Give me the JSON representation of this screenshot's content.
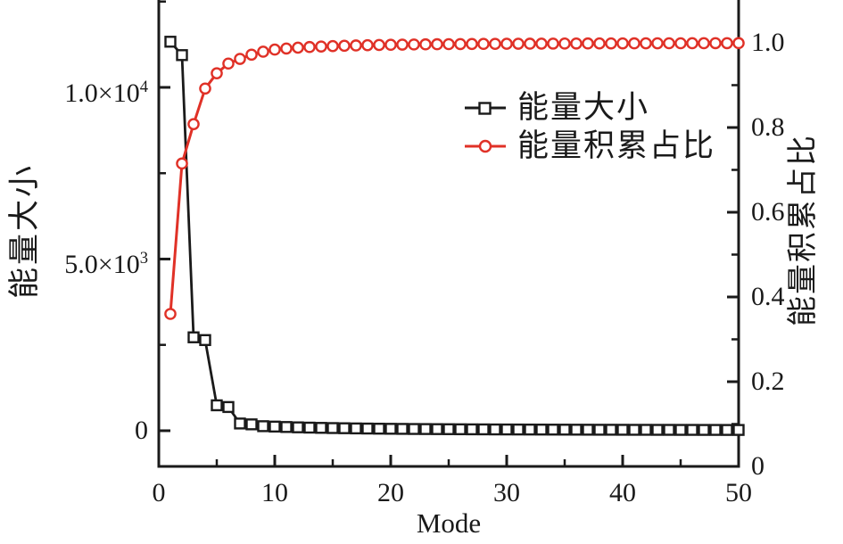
{
  "chart_data": {
    "type": "line",
    "title": "",
    "xlabel": "Mode",
    "xlim": [
      0,
      50
    ],
    "grid": false,
    "x_ticks": {
      "major": [
        {
          "v": 0,
          "label": "0"
        },
        {
          "v": 10,
          "label": "10"
        },
        {
          "v": 20,
          "label": "20"
        },
        {
          "v": 30,
          "label": "30"
        },
        {
          "v": 40,
          "label": "40"
        },
        {
          "v": 50,
          "label": "50"
        }
      ],
      "minor": [
        5,
        15,
        25,
        35,
        45
      ]
    },
    "left_axis": {
      "label": "能量大小",
      "ylim": [
        -1040,
        12545
      ],
      "ticks": [
        {
          "v": 0,
          "base": "0",
          "sup": ""
        },
        {
          "v": 5000,
          "base": "5.0×10",
          "sup": "3"
        },
        {
          "v": 10000,
          "base": "1.0×10",
          "sup": "4"
        }
      ],
      "minor": [
        2500,
        7500,
        12500
      ]
    },
    "right_axis": {
      "label": "能量积累占比",
      "ylim": [
        0,
        1.101
      ],
      "ticks": [
        {
          "v": 0,
          "label": "0"
        },
        {
          "v": 0.2,
          "label": "0.2"
        },
        {
          "v": 0.4,
          "label": "0.4"
        },
        {
          "v": 0.6,
          "label": "0.6"
        },
        {
          "v": 0.8,
          "label": "0.8"
        },
        {
          "v": 1.0,
          "label": "1.0"
        }
      ],
      "minor": [
        0.1,
        0.3,
        0.5,
        0.7,
        0.9
      ]
    },
    "series": [
      {
        "name": "能量大小",
        "axis": "left",
        "color": "#1a1a1a",
        "marker": "square",
        "x": [
          1,
          2,
          3,
          4,
          5,
          6,
          7,
          8,
          9,
          10,
          11,
          12,
          13,
          14,
          15,
          16,
          17,
          18,
          19,
          20,
          21,
          22,
          23,
          24,
          25,
          26,
          27,
          28,
          29,
          30,
          31,
          32,
          33,
          34,
          35,
          36,
          37,
          38,
          39,
          40,
          41,
          42,
          43,
          44,
          45,
          46,
          47,
          48,
          49,
          50
        ],
        "values": [
          11330,
          10940,
          2720,
          2640,
          740,
          690,
          210,
          185,
          132,
          120,
          108,
          98,
          90,
          83,
          77,
          72,
          67,
          63,
          59,
          56,
          53,
          50,
          48,
          46,
          44,
          42,
          40,
          39,
          37,
          36,
          35,
          34,
          33,
          32,
          31,
          30,
          29,
          28,
          28,
          27,
          26,
          26,
          25,
          25,
          24,
          24,
          23,
          23,
          22,
          22
        ]
      },
      {
        "name": "能量积累占比",
        "axis": "right",
        "color": "#e03127",
        "marker": "circle",
        "x": [
          1,
          2,
          3,
          4,
          5,
          6,
          7,
          8,
          9,
          10,
          11,
          12,
          13,
          14,
          15,
          16,
          17,
          18,
          19,
          20,
          21,
          22,
          23,
          24,
          25,
          26,
          27,
          28,
          29,
          30,
          31,
          32,
          33,
          34,
          35,
          36,
          37,
          38,
          39,
          40,
          41,
          42,
          43,
          44,
          45,
          46,
          47,
          48,
          49,
          50
        ],
        "values": [
          0.36,
          0.715,
          0.808,
          0.892,
          0.928,
          0.951,
          0.962,
          0.972,
          0.979,
          0.984,
          0.9865,
          0.9885,
          0.99,
          0.9912,
          0.9922,
          0.993,
          0.9937,
          0.9943,
          0.9948,
          0.9953,
          0.9957,
          0.996,
          0.9963,
          0.9966,
          0.9968,
          0.997,
          0.9972,
          0.9974,
          0.9975,
          0.9977,
          0.9978,
          0.9979,
          0.998,
          0.9981,
          0.9982,
          0.9983,
          0.9984,
          0.9985,
          0.9986,
          0.9986,
          0.9987,
          0.9988,
          0.9988,
          0.9989,
          0.9989,
          0.999,
          0.999,
          0.9991,
          0.9991,
          0.9992
        ]
      }
    ],
    "legend": {
      "position": "upper-center-right",
      "items": [
        {
          "label": "能量大小"
        },
        {
          "label": "能量积累占比"
        }
      ]
    },
    "axis_color": "#1a1a1a"
  }
}
